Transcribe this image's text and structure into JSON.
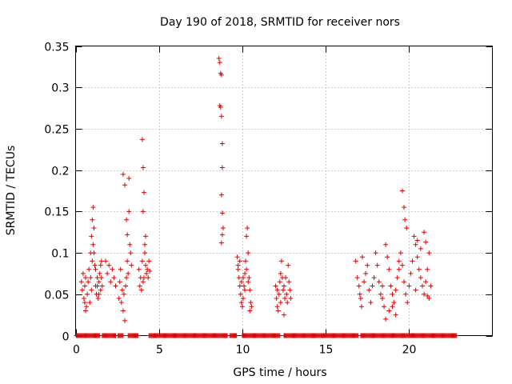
{
  "chart_data": {
    "type": "scatter",
    "title": "Day 190 of 2018, SRMTID for receiver nors",
    "xlabel": "GPS time / hours",
    "ylabel": "SRMTID / TECUs",
    "xlim": [
      0,
      25
    ],
    "ylim": [
      0,
      0.35
    ],
    "grid": true,
    "marker": "+",
    "series_color": "#e00000",
    "x_ticks": [
      {
        "value": 0,
        "label": "0"
      },
      {
        "value": 5,
        "label": "5"
      },
      {
        "value": 10,
        "label": "10"
      },
      {
        "value": 15,
        "label": "15"
      },
      {
        "value": 20,
        "label": "20"
      }
    ],
    "y_ticks": [
      {
        "value": 0,
        "label": "0"
      },
      {
        "value": 0.05,
        "label": "0.05"
      },
      {
        "value": 0.1,
        "label": "0.1"
      },
      {
        "value": 0.15,
        "label": "0.15"
      },
      {
        "value": 0.2,
        "label": "0.2"
      },
      {
        "value": 0.25,
        "label": "0.25"
      },
      {
        "value": 0.3,
        "label": "0.3"
      },
      {
        "value": 0.35,
        "label": "0.35"
      }
    ],
    "points": [
      [
        0.35,
        0.065
      ],
      [
        0.4,
        0.055
      ],
      [
        0.45,
        0.075
      ],
      [
        0.5,
        0.045
      ],
      [
        0.55,
        0.06
      ],
      [
        0.6,
        0.07
      ],
      [
        0.65,
        0.035
      ],
      [
        0.7,
        0.05
      ],
      [
        0.75,
        0.065
      ],
      [
        0.8,
        0.08
      ],
      [
        0.85,
        0.04
      ],
      [
        0.9,
        0.1
      ],
      [
        0.95,
        0.12
      ],
      [
        1.0,
        0.14
      ],
      [
        1.05,
        0.155
      ],
      [
        1.1,
        0.13
      ],
      [
        1.15,
        0.085
      ],
      [
        1.2,
        0.06
      ],
      [
        1.25,
        0.05
      ],
      [
        1.3,
        0.07
      ],
      [
        1.35,
        0.045
      ],
      [
        1.4,
        0.065
      ],
      [
        1.45,
        0.075
      ],
      [
        1.5,
        0.055
      ],
      [
        1.55,
        0.09
      ],
      [
        1.6,
        0.06
      ],
      [
        0.55,
        0.04
      ],
      [
        0.6,
        0.03
      ],
      [
        0.9,
        0.07
      ],
      [
        0.95,
        0.055
      ],
      [
        1.0,
        0.09
      ],
      [
        1.05,
        0.11
      ],
      [
        1.1,
        0.1
      ],
      [
        1.2,
        0.08
      ],
      [
        1.3,
        0.06
      ],
      [
        1.4,
        0.05
      ],
      [
        1.5,
        0.085
      ],
      [
        1.55,
        0.07
      ],
      [
        1.8,
        0.09
      ],
      [
        1.9,
        0.075
      ],
      [
        2.0,
        0.085
      ],
      [
        2.1,
        0.065
      ],
      [
        2.2,
        0.08
      ],
      [
        2.3,
        0.07
      ],
      [
        2.4,
        0.06
      ],
      [
        2.6,
        0.045
      ],
      [
        2.65,
        0.065
      ],
      [
        2.7,
        0.08
      ],
      [
        2.75,
        0.04
      ],
      [
        2.8,
        0.055
      ],
      [
        2.85,
        0.03
      ],
      [
        2.9,
        0.05
      ],
      [
        2.95,
        0.018
      ],
      [
        3.0,
        0.06
      ],
      [
        3.05,
        0.07
      ],
      [
        3.1,
        0.09
      ],
      [
        3.15,
        0.075
      ],
      [
        2.85,
        0.195
      ],
      [
        2.95,
        0.182
      ],
      [
        3.05,
        0.14
      ],
      [
        3.1,
        0.122
      ],
      [
        3.2,
        0.19
      ],
      [
        3.2,
        0.15
      ],
      [
        3.25,
        0.11
      ],
      [
        3.3,
        0.1
      ],
      [
        3.35,
        0.085
      ],
      [
        3.8,
        0.08
      ],
      [
        3.85,
        0.06
      ],
      [
        3.9,
        0.07
      ],
      [
        3.95,
        0.055
      ],
      [
        4.0,
        0.09
      ],
      [
        4.05,
        0.065
      ],
      [
        4.1,
        0.07
      ],
      [
        4.15,
        0.1
      ],
      [
        4.2,
        0.085
      ],
      [
        4.25,
        0.075
      ],
      [
        4.3,
        0.08
      ],
      [
        4.35,
        0.07
      ],
      [
        4.4,
        0.09
      ],
      [
        4.45,
        0.078
      ],
      [
        4.0,
        0.237
      ],
      [
        4.05,
        0.203
      ],
      [
        4.1,
        0.173
      ],
      [
        4.05,
        0.15
      ],
      [
        4.15,
        0.11
      ],
      [
        4.2,
        0.12
      ],
      [
        8.6,
        0.335
      ],
      [
        8.65,
        0.33
      ],
      [
        8.7,
        0.317
      ],
      [
        8.75,
        0.315
      ],
      [
        8.65,
        0.278
      ],
      [
        8.7,
        0.276
      ],
      [
        8.75,
        0.265
      ],
      [
        8.8,
        0.232
      ],
      [
        8.8,
        0.203
      ],
      [
        8.75,
        0.17
      ],
      [
        8.8,
        0.148
      ],
      [
        8.85,
        0.13
      ],
      [
        8.8,
        0.122
      ],
      [
        8.75,
        0.112
      ],
      [
        9.7,
        0.095
      ],
      [
        9.75,
        0.08
      ],
      [
        9.8,
        0.07
      ],
      [
        9.85,
        0.06
      ],
      [
        9.9,
        0.05
      ],
      [
        9.95,
        0.04
      ],
      [
        10.0,
        0.035
      ],
      [
        10.05,
        0.045
      ],
      [
        10.1,
        0.06
      ],
      [
        10.15,
        0.075
      ],
      [
        10.2,
        0.09
      ],
      [
        10.25,
        0.12
      ],
      [
        10.3,
        0.13
      ],
      [
        10.35,
        0.1
      ],
      [
        10.4,
        0.07
      ],
      [
        10.45,
        0.055
      ],
      [
        10.5,
        0.04
      ],
      [
        10.55,
        0.035
      ],
      [
        9.75,
        0.085
      ],
      [
        9.85,
        0.09
      ],
      [
        9.95,
        0.065
      ],
      [
        10.05,
        0.07
      ],
      [
        10.15,
        0.055
      ],
      [
        10.25,
        0.08
      ],
      [
        10.35,
        0.065
      ],
      [
        10.45,
        0.03
      ],
      [
        12.0,
        0.06
      ],
      [
        12.05,
        0.045
      ],
      [
        12.1,
        0.035
      ],
      [
        12.15,
        0.03
      ],
      [
        12.2,
        0.05
      ],
      [
        12.25,
        0.065
      ],
      [
        12.3,
        0.075
      ],
      [
        12.35,
        0.09
      ],
      [
        12.4,
        0.07
      ],
      [
        12.45,
        0.055
      ],
      [
        12.5,
        0.06
      ],
      [
        12.55,
        0.045
      ],
      [
        12.6,
        0.07
      ],
      [
        12.65,
        0.05
      ],
      [
        12.7,
        0.04
      ],
      [
        12.75,
        0.085
      ],
      [
        12.8,
        0.065
      ],
      [
        12.85,
        0.055
      ],
      [
        12.9,
        0.045
      ],
      [
        12.1,
        0.055
      ],
      [
        12.3,
        0.04
      ],
      [
        12.5,
        0.025
      ],
      [
        16.8,
        0.09
      ],
      [
        16.9,
        0.07
      ],
      [
        17.0,
        0.06
      ],
      [
        17.05,
        0.05
      ],
      [
        17.1,
        0.045
      ],
      [
        17.15,
        0.035
      ],
      [
        17.2,
        0.095
      ],
      [
        17.3,
        0.065
      ],
      [
        17.5,
        0.085
      ],
      [
        17.6,
        0.055
      ],
      [
        17.7,
        0.04
      ],
      [
        17.8,
        0.06
      ],
      [
        17.9,
        0.07
      ],
      [
        18.0,
        0.1
      ],
      [
        18.1,
        0.085
      ],
      [
        18.2,
        0.065
      ],
      [
        18.3,
        0.05
      ],
      [
        18.4,
        0.045
      ],
      [
        18.5,
        0.035
      ],
      [
        18.6,
        0.11
      ],
      [
        18.7,
        0.095
      ],
      [
        18.8,
        0.08
      ],
      [
        18.9,
        0.06
      ],
      [
        19.0,
        0.05
      ],
      [
        19.1,
        0.04
      ],
      [
        19.2,
        0.055
      ],
      [
        19.3,
        0.07
      ],
      [
        19.4,
        0.09
      ],
      [
        19.5,
        0.1
      ],
      [
        19.6,
        0.085
      ],
      [
        19.7,
        0.065
      ],
      [
        19.8,
        0.05
      ],
      [
        19.9,
        0.04
      ],
      [
        20.0,
        0.06
      ],
      [
        20.1,
        0.075
      ],
      [
        20.2,
        0.09
      ],
      [
        20.3,
        0.12
      ],
      [
        20.4,
        0.11
      ],
      [
        20.5,
        0.095
      ],
      [
        20.6,
        0.08
      ],
      [
        20.7,
        0.07
      ],
      [
        20.8,
        0.06
      ],
      [
        20.9,
        0.05
      ],
      [
        21.0,
        0.065
      ],
      [
        21.1,
        0.08
      ],
      [
        21.2,
        0.1
      ],
      [
        21.3,
        0.06
      ],
      [
        19.6,
        0.175
      ],
      [
        19.7,
        0.155
      ],
      [
        19.75,
        0.14
      ],
      [
        19.85,
        0.13
      ],
      [
        18.6,
        0.02
      ],
      [
        18.8,
        0.03
      ],
      [
        19.0,
        0.035
      ],
      [
        19.2,
        0.025
      ],
      [
        20.5,
        0.115
      ],
      [
        20.7,
        0.105
      ],
      [
        20.9,
        0.125
      ],
      [
        21.0,
        0.113
      ],
      [
        21.1,
        0.048
      ],
      [
        21.2,
        0.045
      ],
      [
        17.4,
        0.075
      ],
      [
        18.4,
        0.06
      ],
      [
        19.4,
        0.08
      ],
      [
        20.4,
        0.055
      ]
    ],
    "zero_bands": [
      [
        0.05,
        0.8
      ],
      [
        0.85,
        1.45
      ],
      [
        1.6,
        1.95
      ],
      [
        2.0,
        2.4
      ],
      [
        2.55,
        2.85
      ],
      [
        3.15,
        3.75
      ],
      [
        4.4,
        9.1
      ],
      [
        9.25,
        9.65
      ],
      [
        10.0,
        12.25
      ],
      [
        12.5,
        16.95
      ],
      [
        17.1,
        22.85
      ]
    ]
  }
}
